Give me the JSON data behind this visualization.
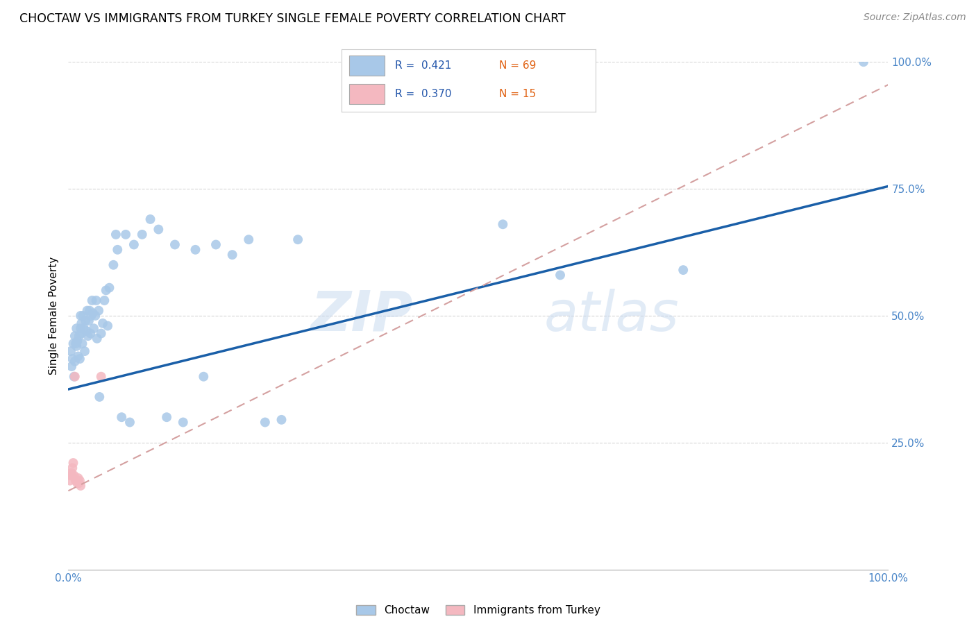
{
  "title": "CHOCTAW VS IMMIGRANTS FROM TURKEY SINGLE FEMALE POVERTY CORRELATION CHART",
  "source": "Source: ZipAtlas.com",
  "ylabel": "Single Female Poverty",
  "xlim": [
    0,
    1
  ],
  "ylim": [
    0,
    1
  ],
  "xticks": [
    0,
    0.25,
    0.5,
    0.75,
    1.0
  ],
  "yticks": [
    0.25,
    0.5,
    0.75,
    1.0
  ],
  "xticklabels": [
    "0.0%",
    "",
    "",
    "",
    "100.0%"
  ],
  "yticklabels": [
    "25.0%",
    "50.0%",
    "75.0%",
    "100.0%"
  ],
  "watermark_zip": "ZIP",
  "watermark_atlas": "atlas",
  "legend_labels": [
    "Choctaw",
    "Immigrants from Turkey"
  ],
  "choctaw_color": "#a8c8e8",
  "turkey_color": "#f4b8c0",
  "choctaw_line_color": "#1a5fa8",
  "turkey_line_color": "#e87878",
  "turkey_dash_color": "#d4a0a0",
  "R_choctaw": 0.421,
  "N_choctaw": 69,
  "R_turkey": 0.37,
  "N_turkey": 15,
  "choctaw_x": [
    0.003,
    0.004,
    0.005,
    0.006,
    0.007,
    0.008,
    0.008,
    0.009,
    0.01,
    0.01,
    0.011,
    0.012,
    0.013,
    0.014,
    0.015,
    0.015,
    0.016,
    0.016,
    0.017,
    0.018,
    0.019,
    0.02,
    0.021,
    0.022,
    0.023,
    0.024,
    0.025,
    0.026,
    0.027,
    0.028,
    0.029,
    0.03,
    0.031,
    0.033,
    0.034,
    0.035,
    0.037,
    0.038,
    0.04,
    0.042,
    0.044,
    0.046,
    0.048,
    0.05,
    0.055,
    0.058,
    0.06,
    0.065,
    0.07,
    0.075,
    0.08,
    0.09,
    0.1,
    0.11,
    0.12,
    0.13,
    0.14,
    0.155,
    0.165,
    0.18,
    0.2,
    0.22,
    0.24,
    0.26,
    0.28,
    0.53,
    0.6,
    0.75,
    0.97
  ],
  "choctaw_y": [
    0.43,
    0.4,
    0.415,
    0.445,
    0.38,
    0.46,
    0.41,
    0.445,
    0.475,
    0.44,
    0.45,
    0.42,
    0.46,
    0.415,
    0.475,
    0.5,
    0.465,
    0.485,
    0.445,
    0.5,
    0.475,
    0.43,
    0.49,
    0.47,
    0.51,
    0.46,
    0.49,
    0.51,
    0.465,
    0.5,
    0.53,
    0.505,
    0.475,
    0.5,
    0.53,
    0.455,
    0.51,
    0.34,
    0.465,
    0.485,
    0.53,
    0.55,
    0.48,
    0.555,
    0.6,
    0.66,
    0.63,
    0.3,
    0.66,
    0.29,
    0.64,
    0.66,
    0.69,
    0.67,
    0.3,
    0.64,
    0.29,
    0.63,
    0.38,
    0.64,
    0.62,
    0.65,
    0.29,
    0.295,
    0.65,
    0.68,
    0.58,
    0.59,
    1.0
  ],
  "turkey_x": [
    0.002,
    0.003,
    0.004,
    0.005,
    0.006,
    0.007,
    0.008,
    0.009,
    0.01,
    0.011,
    0.012,
    0.013,
    0.014,
    0.015,
    0.04
  ],
  "turkey_y": [
    0.175,
    0.185,
    0.19,
    0.2,
    0.21,
    0.185,
    0.38,
    0.175,
    0.175,
    0.17,
    0.18,
    0.17,
    0.175,
    0.165,
    0.38
  ],
  "choctaw_line_x0": 0.0,
  "choctaw_line_y0": 0.355,
  "choctaw_line_x1": 1.0,
  "choctaw_line_y1": 0.755,
  "turkey_line_x0": 0.0,
  "turkey_line_y0": 0.155,
  "turkey_line_x1": 1.0,
  "turkey_line_y1": 0.955
}
